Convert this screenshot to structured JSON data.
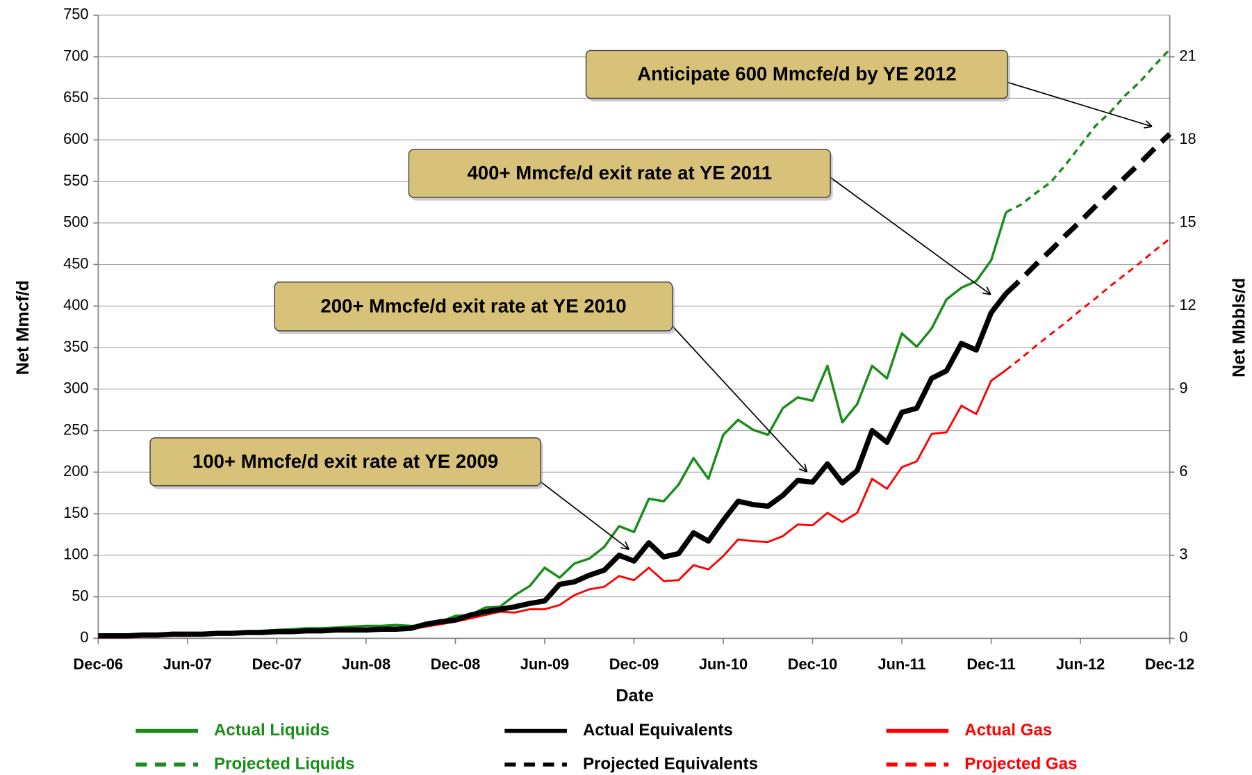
{
  "chart_data": {
    "type": "line",
    "x_label": "Date",
    "y_label": "Net Mmcf/d",
    "y2_label": "Net Mbbls/d",
    "categories": [
      "Dec-06",
      null,
      null,
      null,
      null,
      null,
      "Jun-07",
      null,
      null,
      null,
      null,
      null,
      "Dec-07",
      null,
      null,
      null,
      null,
      null,
      "Jun-08",
      null,
      null,
      null,
      null,
      null,
      "Dec-08",
      null,
      null,
      null,
      null,
      null,
      "Jun-09",
      null,
      null,
      null,
      null,
      null,
      "Dec-09",
      null,
      null,
      null,
      null,
      null,
      "Jun-10",
      null,
      null,
      null,
      null,
      null,
      "Dec-10",
      null,
      null,
      null,
      null,
      null,
      "Jun-11",
      null,
      null,
      null,
      null,
      null,
      "Dec-11",
      null,
      null,
      null,
      null,
      null,
      "Jun-12",
      null,
      null,
      null,
      null,
      null,
      "Dec-12"
    ],
    "ylim": [
      0,
      750
    ],
    "yticks": [
      0,
      50,
      100,
      150,
      200,
      250,
      300,
      350,
      400,
      450,
      500,
      550,
      600,
      650,
      700,
      750
    ],
    "y2lim": [
      0,
      22.5
    ],
    "y2ticks": [
      0,
      3,
      6,
      9,
      12,
      15,
      18,
      21
    ],
    "grid": true,
    "series": [
      {
        "name": "Actual Liquids",
        "color": "#1a8c1a",
        "axis": "y2",
        "dashed": false,
        "values": [
          0.06,
          0.06,
          0.06,
          0.09,
          0.09,
          0.12,
          0.12,
          0.15,
          0.15,
          0.18,
          0.24,
          0.27,
          0.3,
          0.33,
          0.36,
          0.36,
          0.39,
          0.42,
          0.45,
          0.45,
          0.48,
          0.45,
          0.45,
          0.6,
          0.81,
          0.84,
          1.11,
          1.14,
          1.56,
          1.89,
          2.55,
          2.19,
          2.7,
          2.88,
          3.3,
          4.05,
          3.84,
          5.04,
          4.95,
          5.55,
          6.51,
          5.76,
          7.35,
          7.89,
          7.53,
          7.35,
          8.31,
          8.7,
          8.58,
          9.84,
          7.8,
          8.46,
          9.84,
          9.39,
          11.01,
          10.53,
          11.19,
          12.24,
          12.66,
          12.9,
          13.65,
          15.39,
          null,
          null,
          null,
          null,
          null,
          null,
          null,
          null,
          null,
          null,
          null
        ]
      },
      {
        "name": "Projected Liquids",
        "color": "#1a8c1a",
        "axis": "y2",
        "dashed": true,
        "values": [
          null,
          null,
          null,
          null,
          null,
          null,
          null,
          null,
          null,
          null,
          null,
          null,
          null,
          null,
          null,
          null,
          null,
          null,
          null,
          null,
          null,
          null,
          null,
          null,
          null,
          null,
          null,
          null,
          null,
          null,
          null,
          null,
          null,
          null,
          null,
          null,
          null,
          null,
          null,
          null,
          null,
          null,
          null,
          null,
          null,
          null,
          null,
          null,
          null,
          null,
          null,
          null,
          null,
          null,
          null,
          null,
          null,
          null,
          null,
          null,
          null,
          15.39,
          15.66,
          16.08,
          16.47,
          17.1,
          17.8,
          18.5,
          19.0,
          19.6,
          20.1,
          20.7,
          21.27
        ]
      },
      {
        "name": "Actual Equivalents",
        "color": "#000000",
        "dashed": false,
        "values": [
          3,
          3,
          3,
          4,
          4,
          5,
          5,
          5,
          6,
          6,
          7,
          7,
          8,
          8,
          9,
          9,
          10,
          10,
          10,
          11,
          11,
          12,
          17,
          20,
          22,
          28,
          32,
          35,
          38,
          42,
          45,
          65,
          68,
          76,
          82,
          100,
          93,
          115,
          98,
          102,
          127,
          117,
          142,
          165,
          161,
          159,
          172,
          190,
          188,
          210,
          187,
          202,
          250,
          236,
          272,
          277,
          313,
          322,
          355,
          347,
          392,
          415,
          null,
          null,
          null,
          null,
          null,
          null,
          null,
          null,
          null,
          null,
          null
        ]
      },
      {
        "name": "Projected Equivalents",
        "color": "#000000",
        "dashed": true,
        "values": [
          null,
          null,
          null,
          null,
          null,
          null,
          null,
          null,
          null,
          null,
          null,
          null,
          null,
          null,
          null,
          null,
          null,
          null,
          null,
          null,
          null,
          null,
          null,
          null,
          null,
          null,
          null,
          null,
          null,
          null,
          null,
          null,
          null,
          null,
          null,
          null,
          null,
          null,
          null,
          null,
          null,
          null,
          null,
          null,
          null,
          null,
          null,
          null,
          null,
          null,
          null,
          null,
          null,
          null,
          null,
          null,
          null,
          null,
          null,
          null,
          null,
          415,
          432,
          450,
          467,
          485,
          502,
          520,
          537,
          555,
          572,
          590,
          607
        ]
      },
      {
        "name": "Actual Gas",
        "color": "#ff0000",
        "dashed": false,
        "values": [
          1,
          1,
          1,
          2,
          2,
          3,
          3,
          4,
          5,
          6,
          7,
          7,
          8,
          8,
          9,
          9,
          10,
          10,
          10,
          10,
          11,
          11,
          14,
          17,
          20,
          24,
          28,
          32,
          31,
          35,
          35,
          40,
          52,
          59,
          62,
          75,
          70,
          85,
          69,
          70,
          88,
          83,
          99,
          119,
          117,
          116,
          123,
          137,
          136,
          151,
          140,
          151,
          192,
          180,
          206,
          213,
          246,
          248,
          280,
          270,
          310,
          323,
          null,
          null,
          null,
          null,
          null,
          null,
          null,
          null,
          null,
          null,
          null
        ]
      },
      {
        "name": "Projected Gas",
        "color": "#ff0000",
        "dashed": true,
        "values": [
          null,
          null,
          null,
          null,
          null,
          null,
          null,
          null,
          null,
          null,
          null,
          null,
          null,
          null,
          null,
          null,
          null,
          null,
          null,
          null,
          null,
          null,
          null,
          null,
          null,
          null,
          null,
          null,
          null,
          null,
          null,
          null,
          null,
          null,
          null,
          null,
          null,
          null,
          null,
          null,
          null,
          null,
          null,
          null,
          null,
          null,
          null,
          null,
          null,
          null,
          null,
          null,
          null,
          null,
          null,
          null,
          null,
          null,
          null,
          null,
          null,
          323,
          337,
          352,
          366,
          380,
          395,
          409,
          424,
          438,
          452,
          467,
          481
        ]
      }
    ],
    "annotations": [
      {
        "text": "Anticipate 600 Mmcfe/d by YE 2012"
      },
      {
        "text": "400+ Mmcfe/d exit rate at YE 2011"
      },
      {
        "text": "200+ Mmcfe/d exit rate at YE 2010"
      },
      {
        "text": "100+ Mmcfe/d exit rate at YE 2009"
      }
    ]
  }
}
